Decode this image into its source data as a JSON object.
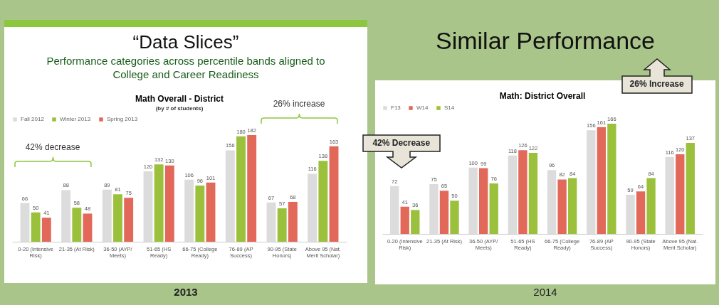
{
  "chart_data": [
    {
      "type": "bar",
      "title": "Math Overall - District",
      "subtitle": "(by # of students)",
      "categories": [
        "0-20 (Intensive Risk)",
        "21-35 (At Risk)",
        "36-50 (AYP/ Meets)",
        "51-65 (HS Ready)",
        "66-75 (College Ready)",
        "76-89 (AP Success)",
        "90-95 (State Honors)",
        "Above 95 (Nat. Merit Scholar)"
      ],
      "series": [
        {
          "name": "Fall 2012",
          "color": "#dcdcdc",
          "values": [
            66,
            88,
            89,
            120,
            106,
            156,
            67,
            116
          ]
        },
        {
          "name": "Winter 2013",
          "color": "#9bc13c",
          "values": [
            50,
            58,
            81,
            132,
            96,
            180,
            57,
            138
          ]
        },
        {
          "name": "Spring 2013",
          "color": "#e2695a",
          "values": [
            41,
            48,
            75,
            130,
            101,
            182,
            68,
            163
          ]
        }
      ],
      "data_labels": true,
      "legend": "top",
      "annotations": [
        "“Data Slices”",
        "Performance categories across percentile bands aligned to College and Career Readiness",
        "42% decrease",
        "26% increase",
        "2013"
      ]
    },
    {
      "type": "bar",
      "title": "Math: District Overall",
      "categories": [
        "0-20 (Intensive Risk)",
        "21-35 (At Risk)",
        "36-50 (AYP/ Meets)",
        "51-65 (HS Ready)",
        "66-75 (College Ready)",
        "76-89 (AP Success)",
        "90-95 (State Honors)",
        "Above 95 (Nat. Merit Scholar)"
      ],
      "series": [
        {
          "name": "F13",
          "color": "#dcdcdc",
          "values": [
            72,
            75,
            100,
            118,
            96,
            156,
            59,
            116
          ]
        },
        {
          "name": "W14",
          "color": "#e2695a",
          "values": [
            41,
            65,
            99,
            126,
            82,
            161,
            64,
            120
          ]
        },
        {
          "name": "S14",
          "color": "#9bc13c",
          "values": [
            36,
            50,
            76,
            122,
            84,
            166,
            84,
            137
          ]
        }
      ],
      "data_labels": true,
      "legend": "top",
      "annotations": [
        "Similar Performance",
        "42% Decrease",
        "26% Increase",
        "2014"
      ]
    }
  ]
}
